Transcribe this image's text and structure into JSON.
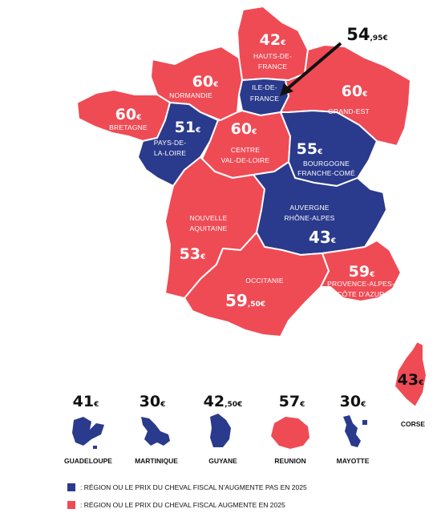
{
  "colors": {
    "increase": "#EF4B55",
    "no_increase": "#2A3A8C",
    "text_dark": "#111111"
  },
  "regions": {
    "hauts_de_france": {
      "name_lines": [
        "HAUTS-DE-",
        "FRANCE"
      ],
      "price_main": "42",
      "price_cur": "€",
      "status": "increase"
    },
    "ile_de_france": {
      "name_lines": [
        "ILE-DE-",
        "FRANCE"
      ],
      "price_main": "54",
      "price_cur": ",95€",
      "status": "no_increase"
    },
    "normandie": {
      "name_lines": [
        "NORMANDIE"
      ],
      "price_main": "60",
      "price_cur": "€",
      "status": "increase"
    },
    "grand_est": {
      "name_lines": [
        "GRAND-EST"
      ],
      "price_main": "60",
      "price_cur": "€",
      "status": "increase"
    },
    "bretagne": {
      "name_lines": [
        "BRETAGNE"
      ],
      "price_main": "60",
      "price_cur": "€",
      "status": "increase"
    },
    "pays_de_la_loire": {
      "name_lines": [
        "PAYS-DE-",
        "LA-LOIRE"
      ],
      "price_main": "51",
      "price_cur": "€",
      "status": "no_increase"
    },
    "centre_val_de_loire": {
      "name_lines": [
        "CENTRE",
        "VAL-DE-LOIRE"
      ],
      "price_main": "60",
      "price_cur": "€",
      "status": "increase"
    },
    "bourgogne_franche_comte": {
      "name_lines": [
        "BOURGOGNE",
        "FRANCHE-COMÉ"
      ],
      "price_main": "55",
      "price_cur": "€",
      "status": "no_increase"
    },
    "nouvelle_aquitaine": {
      "name_lines": [
        "NOUVELLE",
        "AQUITAINE"
      ],
      "price_main": "53",
      "price_cur": "€",
      "status": "increase"
    },
    "auvergne_rhone_alpes": {
      "name_lines": [
        "AUVERGNE",
        "RHÔNE-ALPES"
      ],
      "price_main": "43",
      "price_cur": "€",
      "status": "no_increase"
    },
    "occitanie": {
      "name_lines": [
        "OCCITANIE"
      ],
      "price_main": "59",
      "price_cur": ",50€",
      "status": "increase"
    },
    "provence_alpes_cote_dazur": {
      "name_lines": [
        "PROVENCE-ALPES-",
        "CÔTE D'AZUR"
      ],
      "price_main": "59",
      "price_cur": "€",
      "status": "increase"
    },
    "corse": {
      "name": "CORSE",
      "price_main": "43",
      "price_cur": "€",
      "status": "increase"
    }
  },
  "overseas": [
    {
      "name": "GUADELOUPE",
      "price_main": "41",
      "price_cur": "€",
      "status": "no_increase"
    },
    {
      "name": "MARTINIQUE",
      "price_main": "30",
      "price_cur": "€",
      "status": "no_increase"
    },
    {
      "name": "GUYANE",
      "price_main": "42",
      "price_cur": ",50€",
      "status": "no_increase"
    },
    {
      "name": "REUNION",
      "price_main": "57",
      "price_cur": "€",
      "status": "increase"
    },
    {
      "name": "MAYOTTE",
      "price_main": "30",
      "price_cur": "€",
      "status": "no_increase"
    }
  ],
  "legend": {
    "no_increase": ": RÉGION OU LE PRIX DU CHEVAL FISCAL N'AUGMENTE PAS EN 2025",
    "increase": ": RÉGION OU LE PRIX DU CHEVAL FISCAL AUGMENTE EN 2025"
  }
}
